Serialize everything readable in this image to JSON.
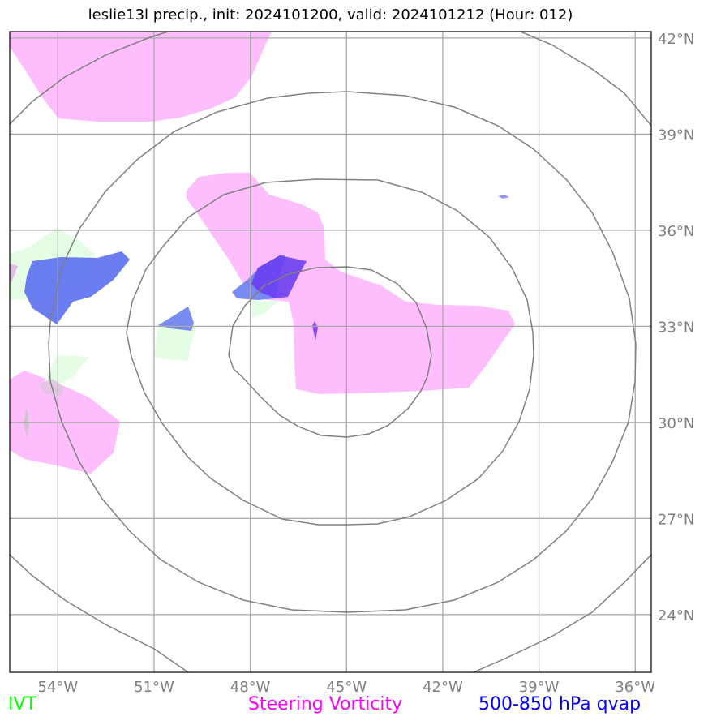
{
  "title": "leslie13l precip., init: 2024101200, valid: 2024101212 (Hour: 012)",
  "map": {
    "lon_range": [
      -55.5,
      -35.5
    ],
    "lat_range": [
      22.2,
      42.2
    ],
    "center": {
      "lon": -45.0,
      "lat": 32.0
    },
    "lon_ticks": [
      {
        "value": -54,
        "label": "54°W"
      },
      {
        "value": -51,
        "label": "51°W"
      },
      {
        "value": -48,
        "label": "48°W"
      },
      {
        "value": -45,
        "label": "45°W"
      },
      {
        "value": -42,
        "label": "42°W"
      },
      {
        "value": -39,
        "label": "39°W"
      },
      {
        "value": -36,
        "label": "36°W"
      }
    ],
    "lat_ticks": [
      {
        "value": 42,
        "label": "42°N"
      },
      {
        "value": 39,
        "label": "39°N"
      },
      {
        "value": 36,
        "label": "36°N"
      },
      {
        "value": 33,
        "label": "33°N"
      },
      {
        "value": 30,
        "label": "30°N"
      },
      {
        "value": 27,
        "label": "27°N"
      },
      {
        "value": 24,
        "label": "24°N"
      }
    ],
    "gridlines": true,
    "range_rings": true
  },
  "legend": {
    "ivt": "IVT",
    "vorticity": "Steering Vorticity",
    "qvap": "500-850 hPa qvap"
  },
  "colors": {
    "ivt": "#00ff00",
    "vorticity": "#ff00ff",
    "qvap": "#0000ff",
    "ivt_fill": "#e2fde2",
    "vorticity_fill": "#febefe",
    "qvap_fill": "#6a7ff0",
    "grid": "#a8a8a8",
    "ring": "#808080",
    "tick_label": "#7f7f7f"
  }
}
